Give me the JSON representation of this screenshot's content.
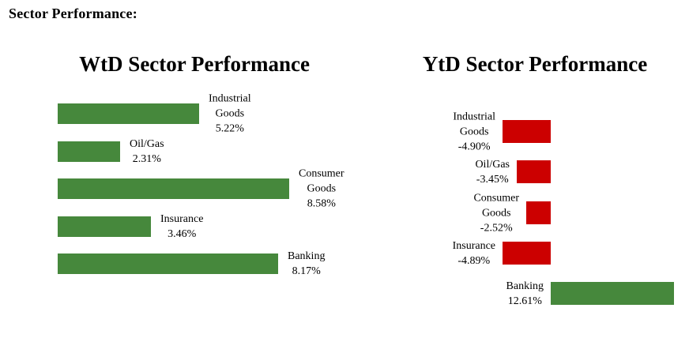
{
  "header": {
    "title": "Sector Performance:"
  },
  "colors": {
    "positive_bar": "#46883C",
    "negative_bar": "#CC0000",
    "text": "#000000",
    "background": "#FFFFFF"
  },
  "chart_data": [
    {
      "type": "bar",
      "orientation": "horizontal",
      "title": "WtD Sector Performance",
      "categories": [
        "Industrial Goods",
        "Oil/Gas",
        "Consumer Goods",
        "Insurance",
        "Banking"
      ],
      "category_lines": [
        [
          "Industrial",
          "Goods"
        ],
        [
          "Oil/Gas"
        ],
        [
          "Consumer",
          "Goods"
        ],
        [
          "Insurance"
        ],
        [
          "Banking"
        ]
      ],
      "values": [
        5.22,
        2.31,
        8.58,
        3.46,
        8.17
      ],
      "value_labels": [
        "5.22%",
        "2.31%",
        "8.58%",
        "3.46%",
        "8.17%"
      ],
      "unit": "%",
      "xlim": [
        0,
        10
      ],
      "axes_hidden": true,
      "legend": "none",
      "bar_color_positive": "#46883C",
      "bar_color_negative": "#CC0000",
      "label_position": "right-of-bar"
    },
    {
      "type": "bar",
      "orientation": "horizontal",
      "title": "YtD Sector Performance",
      "categories": [
        "Industrial Goods",
        "Oil/Gas",
        "Consumer Goods",
        "Insurance",
        "Banking"
      ],
      "category_lines": [
        [
          "Industrial",
          "Goods"
        ],
        [
          "Oil/Gas"
        ],
        [
          "Consumer",
          "Goods"
        ],
        [
          "Insurance"
        ],
        [
          "Banking"
        ]
      ],
      "values": [
        -4.9,
        -3.45,
        -2.52,
        -4.89,
        12.61
      ],
      "value_labels": [
        "-4.90%",
        "-3.45%",
        "-2.52%",
        "-4.89%",
        "12.61%"
      ],
      "unit": "%",
      "xlim": [
        -5,
        13
      ],
      "axes_hidden": true,
      "legend": "none",
      "bar_color_positive": "#46883C",
      "bar_color_negative": "#CC0000",
      "label_position": "left-of-bar"
    }
  ]
}
